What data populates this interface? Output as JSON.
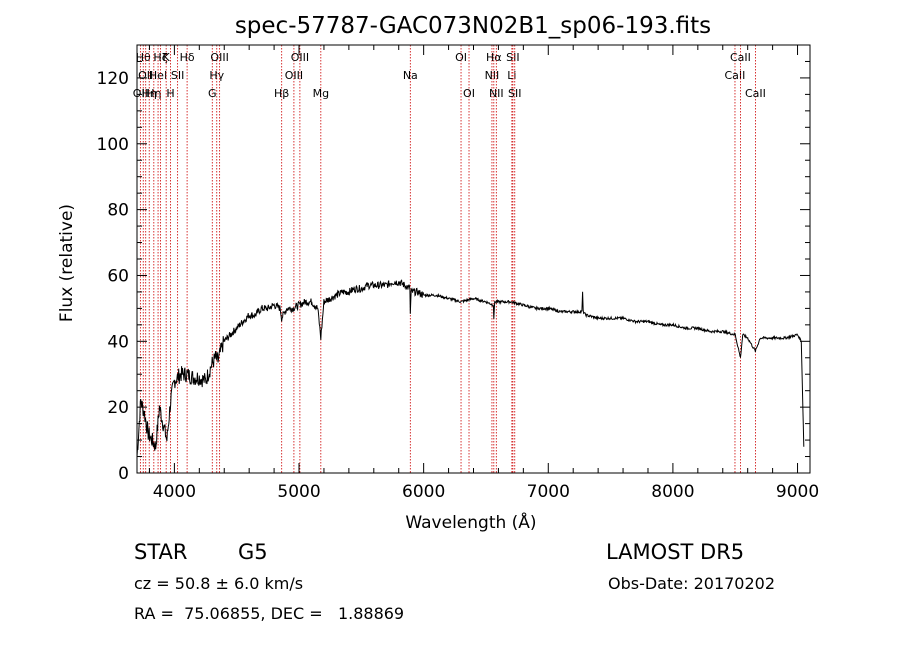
{
  "chart_data": {
    "type": "line",
    "title": "spec-57787-GAC073N02B1_sp06-193.fits",
    "xlabel": "Wavelength (Å)",
    "ylabel": "Flux (relative)",
    "xlim": [
      3700,
      9100
    ],
    "ylim": [
      0,
      130
    ],
    "x_ticks": [
      4000,
      5000,
      6000,
      7000,
      8000,
      9000
    ],
    "y_ticks": [
      0,
      20,
      40,
      60,
      80,
      100,
      120
    ],
    "grid": false,
    "line_color": "#000000",
    "marker_color": "#cc0000",
    "series": [
      {
        "x": [
          3700,
          3730,
          3760,
          3790,
          3820,
          3850,
          3880,
          3910,
          3940,
          3970,
          4000,
          4050,
          4100,
          4150,
          4200,
          4250,
          4300,
          4330,
          4350,
          4380,
          4400,
          4450,
          4500,
          4550,
          4600,
          4650,
          4700,
          4750,
          4800,
          4850,
          4860,
          4900,
          4950,
          5000,
          5050,
          5100,
          5150,
          5175,
          5200,
          5250,
          5300,
          5350,
          5400,
          5450,
          5500,
          5550,
          5600,
          5650,
          5700,
          5750,
          5800,
          5850,
          5890,
          5893,
          5900,
          5950,
          6000,
          6100,
          6200,
          6300,
          6400,
          6500,
          6560,
          6563,
          6570,
          6650,
          6700,
          6800,
          6900,
          7000,
          7100,
          7200,
          7270,
          7275,
          7280,
          7300,
          7400,
          7500,
          7600,
          7700,
          7800,
          7900,
          8000,
          8100,
          8200,
          8300,
          8400,
          8500,
          8542,
          8560,
          8600,
          8662,
          8700,
          8800,
          8900,
          9000,
          9030,
          9050
        ],
        "y": [
          5,
          22,
          18,
          12,
          10,
          8,
          20,
          15,
          10,
          22,
          28,
          30,
          30,
          29,
          29,
          28,
          33,
          35,
          34,
          38,
          40,
          42,
          44,
          46,
          48,
          48,
          50,
          50,
          51,
          50,
          47,
          50,
          50,
          51,
          52,
          52,
          50,
          41,
          52,
          53,
          54,
          55,
          55,
          56,
          56,
          57,
          57,
          57,
          57,
          58,
          58,
          57,
          56,
          48,
          55,
          55,
          54,
          54,
          53,
          52,
          53,
          52,
          51,
          47,
          52,
          52,
          52,
          51,
          50,
          50,
          49,
          49,
          49,
          55,
          49,
          48,
          47,
          47,
          47,
          46,
          46,
          45,
          45,
          44,
          44,
          43,
          43,
          42,
          35,
          42,
          41,
          37,
          41,
          41,
          41,
          42,
          40,
          8
        ]
      }
    ],
    "line_markers": [
      {
        "x": 3727,
        "label": "OII",
        "row": 2
      },
      {
        "x": 3750,
        "label": "Hθ",
        "row": 0
      },
      {
        "x": 3770,
        "label": "OII",
        "row": 1
      },
      {
        "x": 3798,
        "label": "Hη",
        "row": 2
      },
      {
        "x": 3835,
        "label": "Hη",
        "row": 2
      },
      {
        "x": 3869,
        "label": "HeI",
        "row": 1
      },
      {
        "x": 3889,
        "label": "Hζ",
        "row": 0
      },
      {
        "x": 3934,
        "label": "K",
        "row": 0
      },
      {
        "x": 3969,
        "label": "H",
        "row": 2
      },
      {
        "x": 4026,
        "label": "SII",
        "row": 1
      },
      {
        "x": 4102,
        "label": "Hδ",
        "row": 0
      },
      {
        "x": 4304,
        "label": "G",
        "row": 2
      },
      {
        "x": 4340,
        "label": "Hγ",
        "row": 1
      },
      {
        "x": 4363,
        "label": "OIII",
        "row": 0
      },
      {
        "x": 4861,
        "label": "Hβ",
        "row": 2
      },
      {
        "x": 4959,
        "label": "OIII",
        "row": 1
      },
      {
        "x": 5007,
        "label": "OIII",
        "row": 0
      },
      {
        "x": 5175,
        "label": "Mg",
        "row": 2
      },
      {
        "x": 5893,
        "label": "Na",
        "row": 1
      },
      {
        "x": 6300,
        "label": "OI",
        "row": 0
      },
      {
        "x": 6364,
        "label": "OI",
        "row": 2
      },
      {
        "x": 6548,
        "label": "NII",
        "row": 1
      },
      {
        "x": 6563,
        "label": "Hα",
        "row": 0
      },
      {
        "x": 6583,
        "label": "NII",
        "row": 2
      },
      {
        "x": 6708,
        "label": "Li",
        "row": 1
      },
      {
        "x": 6716,
        "label": "SII",
        "row": 0
      },
      {
        "x": 6731,
        "label": "SII",
        "row": 2
      },
      {
        "x": 8498,
        "label": "CaII",
        "row": 1
      },
      {
        "x": 8542,
        "label": "CaII",
        "row": 0
      },
      {
        "x": 8662,
        "label": "CaII",
        "row": 2
      }
    ]
  },
  "info": {
    "class_label": "STAR",
    "subclass": "G5",
    "survey": "LAMOST DR5",
    "cz": "cz = 50.8 ± 6.0 km/s",
    "obs_date": "Obs-Date: 20170202",
    "coords": "RA =  75.06855, DEC =   1.88869"
  }
}
